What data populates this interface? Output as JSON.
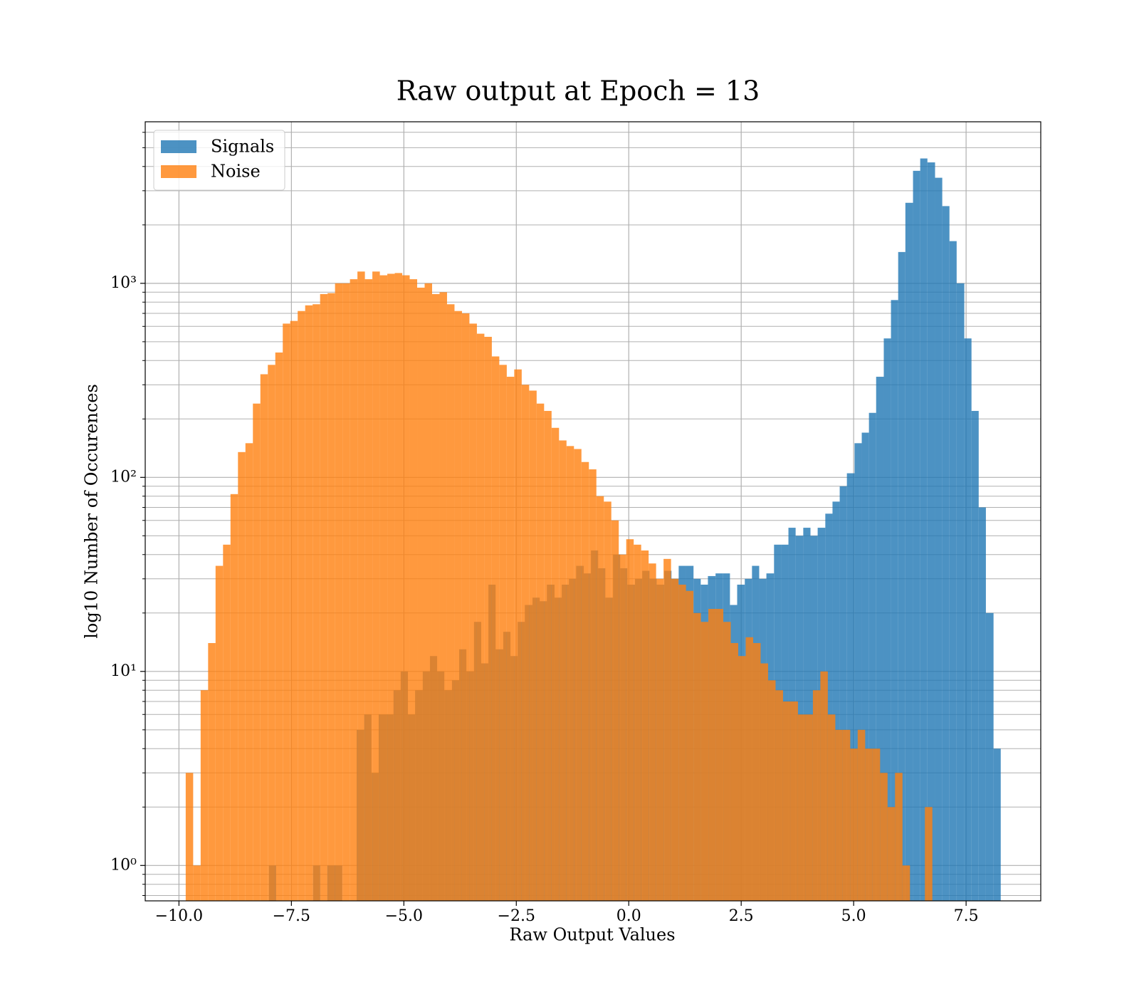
{
  "chart_data": {
    "type": "histogram",
    "title": "Raw output at Epoch = 13",
    "x_label": "Raw Output Values",
    "y_label": "log10 Number of Occurences",
    "log_y": true,
    "grid": true,
    "legend": "upper left",
    "xlim": [
      -10.75,
      9.16
    ],
    "ylim": [
      0.657,
      6800
    ],
    "xticks": [
      {
        "value": -10,
        "label": "−10.0"
      },
      {
        "value": -7.5,
        "label": "−7.5"
      },
      {
        "value": -5,
        "label": "−5.0"
      },
      {
        "value": -2.5,
        "label": "−2.5"
      },
      {
        "value": 0,
        "label": "0.0"
      },
      {
        "value": 2.5,
        "label": "2.5"
      },
      {
        "value": 5,
        "label": "5.0"
      },
      {
        "value": 7.5,
        "label": "7.5"
      }
    ],
    "yticks": [
      {
        "value": 1,
        "label": "10⁰"
      },
      {
        "value": 10,
        "label": "10¹"
      },
      {
        "value": 100,
        "label": "10²"
      },
      {
        "value": 1000,
        "label": "10³"
      }
    ],
    "yticks_minor": [
      0.7,
      0.8,
      0.9,
      2,
      3,
      4,
      5,
      6,
      7,
      8,
      9,
      20,
      30,
      40,
      50,
      60,
      70,
      80,
      90,
      200,
      300,
      400,
      500,
      600,
      700,
      800,
      900,
      2000,
      3000,
      4000,
      5000,
      6000
    ],
    "series": [
      {
        "name": "Signals",
        "color": "#1f77b4",
        "bins": [
          -8.0,
          -7.84,
          -7.67,
          -7.51,
          -7.35,
          -7.19,
          -7.02,
          -6.86,
          -6.7,
          -6.54,
          -6.37,
          -6.21,
          -6.05,
          -5.88,
          -5.72,
          -5.56,
          -5.4,
          -5.23,
          -5.07,
          -4.91,
          -4.75,
          -4.58,
          -4.42,
          -4.26,
          -4.1,
          -3.93,
          -3.77,
          -3.61,
          -3.44,
          -3.28,
          -3.12,
          -2.96,
          -2.79,
          -2.63,
          -2.47,
          -2.31,
          -2.14,
          -1.98,
          -1.82,
          -1.65,
          -1.49,
          -1.33,
          -1.17,
          -1.0,
          -0.84,
          -0.68,
          -0.52,
          -0.35,
          -0.19,
          -0.03,
          0.14,
          0.3,
          0.46,
          0.62,
          0.79,
          0.95,
          1.11,
          1.27,
          1.44,
          1.6,
          1.76,
          1.93,
          2.09,
          2.25,
          2.41,
          2.58,
          2.74,
          2.9,
          3.06,
          3.23,
          3.39,
          3.55,
          3.71,
          3.88,
          4.04,
          4.2,
          4.37,
          4.53,
          4.69,
          4.85,
          5.02,
          5.18,
          5.34,
          5.5,
          5.67,
          5.83,
          5.99,
          6.15,
          6.32,
          6.48,
          6.64,
          6.81,
          6.97,
          7.13,
          7.29,
          7.46,
          7.62,
          7.78,
          7.94,
          8.11,
          8.27
        ],
        "values": [
          1,
          0,
          0,
          0,
          0,
          0,
          1,
          0,
          1,
          1,
          0,
          0,
          5,
          6,
          3,
          6,
          6,
          8,
          10,
          6,
          8,
          10,
          12,
          10,
          8,
          9,
          13,
          10,
          18,
          11,
          28,
          13,
          16,
          12,
          18,
          22,
          24,
          23,
          28,
          24,
          28,
          30,
          35,
          32,
          42,
          34,
          24,
          40,
          34,
          28,
          30,
          33,
          30,
          28,
          33,
          30,
          35,
          35,
          30,
          28,
          31,
          32,
          32,
          22,
          28,
          30,
          35,
          30,
          32,
          45,
          45,
          55,
          50,
          55,
          50,
          55,
          65,
          75,
          90,
          105,
          150,
          170,
          215,
          330,
          520,
          820,
          1450,
          2600,
          3800,
          4400,
          4200,
          3500,
          2500,
          1650,
          1000,
          520,
          220,
          70,
          20,
          4
        ]
      },
      {
        "name": "Noise",
        "color": "#ff7f0e",
        "bins": [
          -9.85,
          -9.684,
          -9.518,
          -9.352,
          -9.186,
          -9.02,
          -8.854,
          -8.688,
          -8.522,
          -8.356,
          -8.19,
          -8.024,
          -7.858,
          -7.692,
          -7.526,
          -7.36,
          -7.194,
          -7.028,
          -6.862,
          -6.696,
          -6.53,
          -6.364,
          -6.198,
          -6.032,
          -5.866,
          -5.7,
          -5.534,
          -5.368,
          -5.202,
          -5.036,
          -4.87,
          -4.704,
          -4.538,
          -4.372,
          -4.206,
          -4.04,
          -3.874,
          -3.708,
          -3.542,
          -3.376,
          -3.21,
          -3.044,
          -2.878,
          -2.712,
          -2.546,
          -2.38,
          -2.214,
          -2.048,
          -1.882,
          -1.716,
          -1.55,
          -1.384,
          -1.218,
          -1.052,
          -0.886,
          -0.72,
          -0.554,
          -0.388,
          -0.222,
          -0.056,
          0.11,
          0.276,
          0.442,
          0.608,
          0.774,
          0.94,
          1.106,
          1.272,
          1.438,
          1.604,
          1.77,
          1.936,
          2.102,
          2.268,
          2.434,
          2.6,
          2.766,
          2.932,
          3.098,
          3.264,
          3.43,
          3.596,
          3.762,
          3.928,
          4.094,
          4.26,
          4.426,
          4.592,
          4.758,
          4.924,
          5.09,
          5.256,
          5.422,
          5.588,
          5.754,
          5.92,
          6.086,
          6.252,
          6.418,
          6.584,
          6.75
        ],
        "values": [
          3,
          1,
          8,
          14,
          35,
          45,
          82,
          135,
          150,
          240,
          340,
          380,
          440,
          620,
          640,
          720,
          770,
          780,
          880,
          890,
          1000,
          1000,
          1050,
          1150,
          1050,
          1150,
          1100,
          1120,
          1130,
          1100,
          1050,
          950,
          1000,
          880,
          900,
          780,
          720,
          700,
          620,
          550,
          530,
          420,
          380,
          330,
          360,
          300,
          280,
          240,
          220,
          180,
          155,
          145,
          140,
          120,
          110,
          80,
          75,
          60,
          40,
          48,
          45,
          42,
          36,
          30,
          38,
          30,
          28,
          26,
          20,
          18,
          21,
          21,
          18,
          14,
          12,
          15,
          14,
          11,
          9,
          8,
          7,
          7,
          6,
          6,
          8,
          10,
          6,
          5,
          5,
          4,
          5,
          4,
          4,
          3,
          2,
          3,
          1,
          0,
          0,
          2
        ]
      }
    ]
  }
}
